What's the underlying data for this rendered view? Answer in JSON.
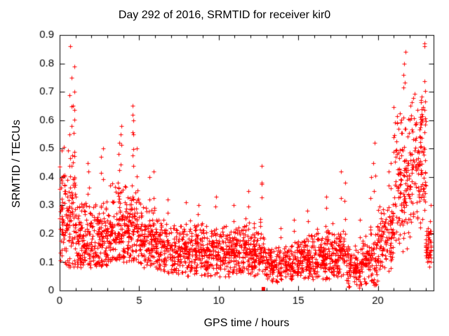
{
  "chart_data": {
    "type": "scatter",
    "title": "Day 292 of 2016, SRMTID for receiver kir0",
    "xlabel": "GPS time / hours",
    "ylabel": "SRMTID / TECUs",
    "xlim": [
      0,
      23.5
    ],
    "ylim": [
      0,
      0.9
    ],
    "xticks_major": [
      0,
      5,
      10,
      15,
      20
    ],
    "xtick_minor_step": 1,
    "yticks": [
      {
        "v": 0.0,
        "label": "0"
      },
      {
        "v": 0.1,
        "label": "0.1"
      },
      {
        "v": 0.2,
        "label": "0.2"
      },
      {
        "v": 0.3,
        "label": "0.3"
      },
      {
        "v": 0.4,
        "label": "0.4"
      },
      {
        "v": 0.5,
        "label": "0.5"
      },
      {
        "v": 0.6,
        "label": "0.6"
      },
      {
        "v": 0.7,
        "label": "0.7"
      },
      {
        "v": 0.8,
        "label": "0.8"
      },
      {
        "v": 0.9,
        "label": "0.9"
      }
    ],
    "marker": "plus",
    "marker_color": "#ff0000",
    "axis_color": "#000000",
    "seed": 292,
    "bins": [
      {
        "x0": 0.0,
        "x1": 1.0,
        "n": 145,
        "min": 0.08,
        "mode": 0.26,
        "max": 0.62,
        "spikes": [
          0.86,
          0.79,
          0.75,
          0.7,
          0.65,
          0.58,
          0.55
        ]
      },
      {
        "x0": 1.0,
        "x1": 2.0,
        "n": 120,
        "min": 0.08,
        "mode": 0.18,
        "max": 0.38,
        "spikes": [
          0.45,
          0.42
        ]
      },
      {
        "x0": 2.0,
        "x1": 3.0,
        "n": 120,
        "min": 0.08,
        "mode": 0.19,
        "max": 0.4,
        "spikes": [
          0.5,
          0.47
        ]
      },
      {
        "x0": 3.0,
        "x1": 4.0,
        "n": 125,
        "min": 0.1,
        "mode": 0.22,
        "max": 0.45,
        "spikes": [
          0.58,
          0.55,
          0.52,
          0.48
        ]
      },
      {
        "x0": 4.0,
        "x1": 5.0,
        "n": 130,
        "min": 0.1,
        "mode": 0.22,
        "max": 0.42,
        "spikes": [
          0.65,
          0.62,
          0.6,
          0.55,
          0.5
        ]
      },
      {
        "x0": 5.0,
        "x1": 6.0,
        "n": 120,
        "min": 0.08,
        "mode": 0.18,
        "max": 0.35,
        "spikes": [
          0.42,
          0.4
        ]
      },
      {
        "x0": 6.0,
        "x1": 7.0,
        "n": 110,
        "min": 0.06,
        "mode": 0.15,
        "max": 0.3,
        "spikes": [
          0.32
        ]
      },
      {
        "x0": 7.0,
        "x1": 8.0,
        "n": 110,
        "min": 0.06,
        "mode": 0.14,
        "max": 0.28,
        "spikes": [
          0.31
        ]
      },
      {
        "x0": 8.0,
        "x1": 9.0,
        "n": 110,
        "min": 0.05,
        "mode": 0.14,
        "max": 0.28,
        "spikes": [
          0.3
        ]
      },
      {
        "x0": 9.0,
        "x1": 10.0,
        "n": 110,
        "min": 0.05,
        "mode": 0.13,
        "max": 0.28,
        "spikes": [
          0.33
        ]
      },
      {
        "x0": 10.0,
        "x1": 11.0,
        "n": 110,
        "min": 0.05,
        "mode": 0.13,
        "max": 0.26,
        "spikes": [
          0.3
        ]
      },
      {
        "x0": 11.0,
        "x1": 12.0,
        "n": 110,
        "min": 0.06,
        "mode": 0.14,
        "max": 0.3,
        "spikes": [
          0.35
        ]
      },
      {
        "x0": 12.0,
        "x1": 13.0,
        "n": 110,
        "min": 0.05,
        "mode": 0.13,
        "max": 0.3,
        "spikes": [
          0.44,
          0.38
        ]
      },
      {
        "x0": 13.0,
        "x1": 14.0,
        "n": 90,
        "min": 0.03,
        "mode": 0.09,
        "max": 0.18,
        "spikes": [
          0.22
        ]
      },
      {
        "x0": 14.0,
        "x1": 15.0,
        "n": 100,
        "min": 0.04,
        "mode": 0.1,
        "max": 0.2,
        "spikes": [
          0.25
        ]
      },
      {
        "x0": 15.0,
        "x1": 16.0,
        "n": 110,
        "min": 0.04,
        "mode": 0.11,
        "max": 0.22,
        "spikes": [
          0.28
        ]
      },
      {
        "x0": 16.0,
        "x1": 17.0,
        "n": 110,
        "min": 0.04,
        "mode": 0.12,
        "max": 0.26,
        "spikes": [
          0.33
        ]
      },
      {
        "x0": 17.0,
        "x1": 18.0,
        "n": 110,
        "min": 0.05,
        "mode": 0.13,
        "max": 0.3,
        "spikes": [
          0.42,
          0.38
        ]
      },
      {
        "x0": 18.0,
        "x1": 19.0,
        "n": 100,
        "min": 0.01,
        "mode": 0.08,
        "max": 0.2,
        "spikes": [
          0.25
        ]
      },
      {
        "x0": 19.0,
        "x1": 20.0,
        "n": 100,
        "min": 0.02,
        "mode": 0.1,
        "max": 0.3,
        "spikes": [
          0.52,
          0.45,
          0.4
        ]
      },
      {
        "x0": 20.0,
        "x1": 21.0,
        "n": 110,
        "min": 0.06,
        "mode": 0.18,
        "max": 0.35,
        "spikes": [
          0.45,
          0.42
        ]
      },
      {
        "x0": 21.0,
        "x1": 22.0,
        "n": 135,
        "min": 0.12,
        "mode": 0.38,
        "max": 0.72,
        "spikes": [
          0.84,
          0.8,
          0.76
        ]
      },
      {
        "x0": 22.0,
        "x1": 23.0,
        "n": 135,
        "min": 0.15,
        "mode": 0.45,
        "max": 0.7,
        "spikes": [
          0.87,
          0.86,
          0.67
        ]
      },
      {
        "x0": 23.0,
        "x1": 23.35,
        "n": 50,
        "min": 0.08,
        "mode": 0.15,
        "max": 0.25,
        "spikes": [
          0.3
        ]
      }
    ],
    "special_points": [
      {
        "x": 12.8,
        "y": 0.008,
        "marker": "filled-square"
      }
    ]
  }
}
